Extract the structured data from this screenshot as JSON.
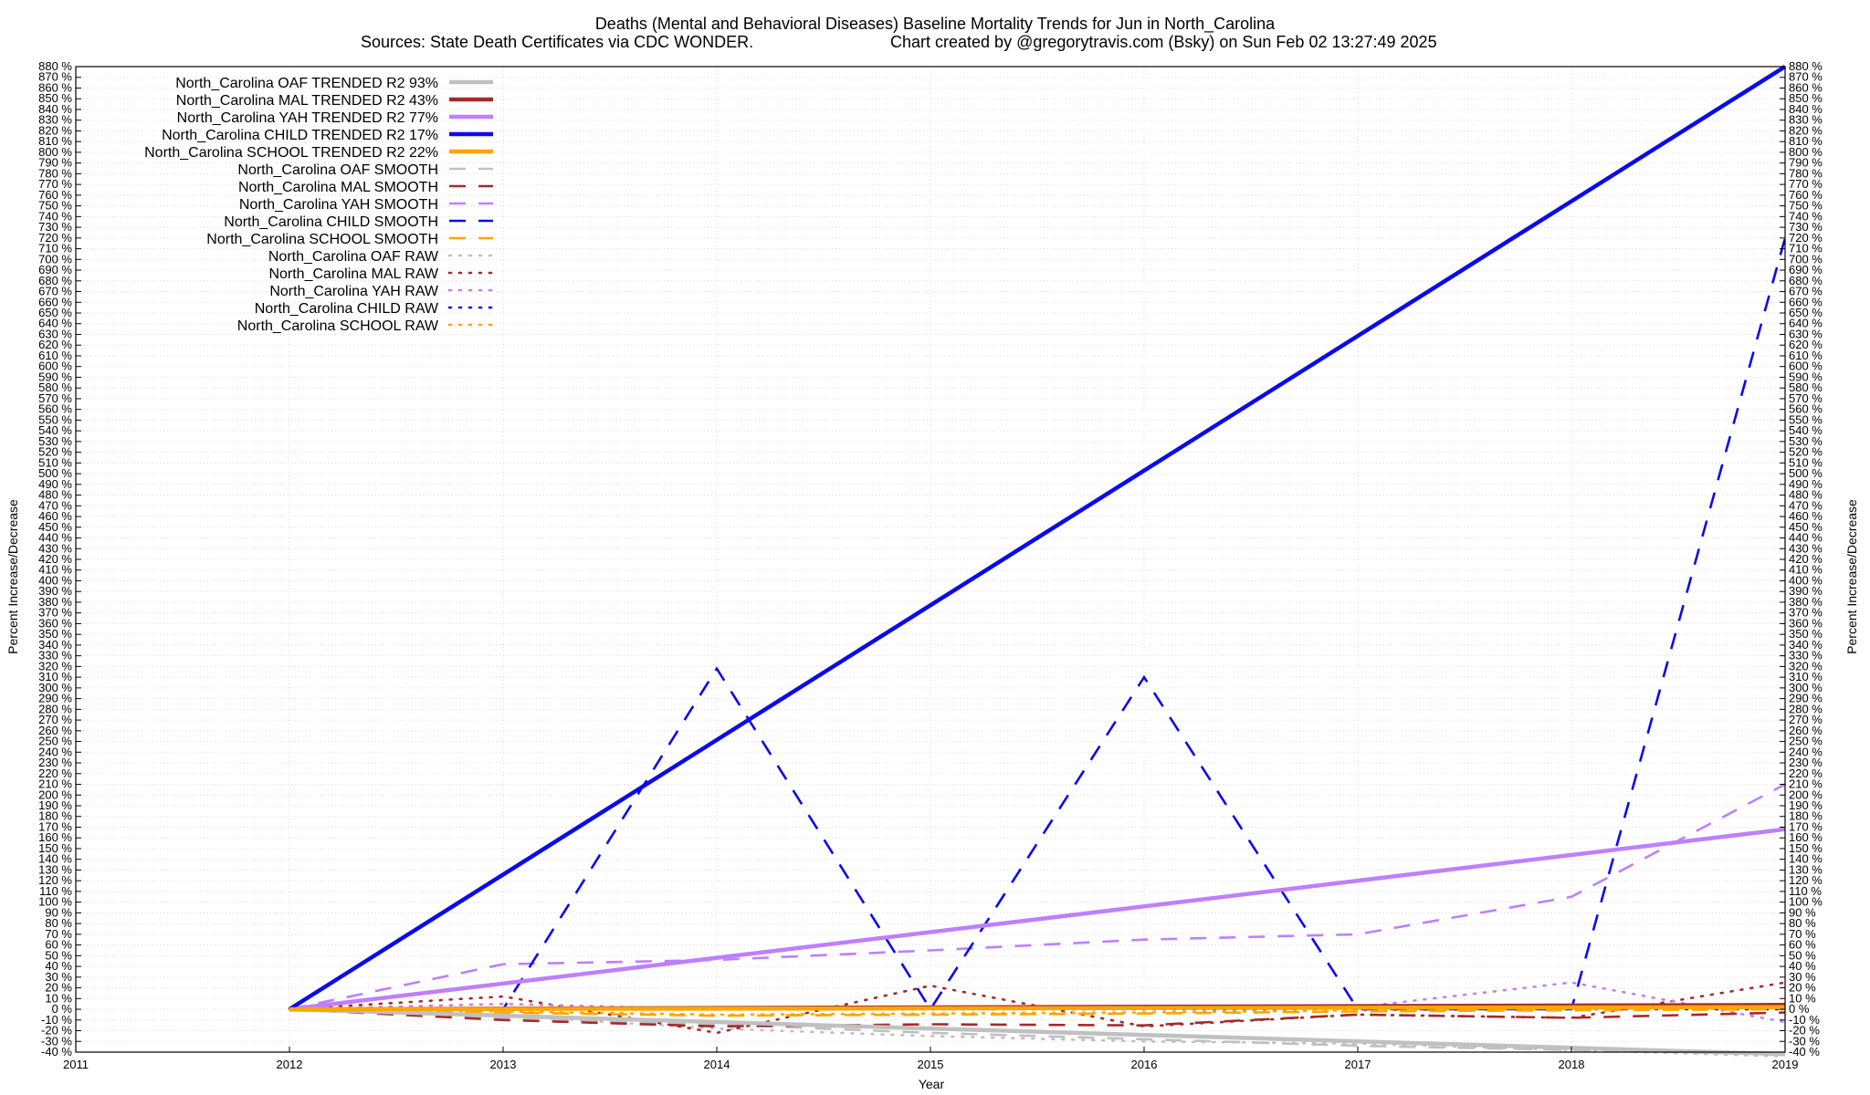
{
  "chart_data": {
    "type": "line",
    "title": "Deaths (Mental and Behavioral Diseases)  Baseline Mortality Trends for Jun in North_Carolina",
    "subtitle_left": "Sources: State Death Certificates via CDC WONDER.",
    "subtitle_right": "Chart created by @gregorytravis.com (Bsky) on Sun Feb 02 13:27:49 2025",
    "xlabel": "Year",
    "ylabel_left": "Percent Increase/Decrease",
    "ylabel_right": "Percent Increase/Decrease",
    "xlim": [
      2011,
      2019
    ],
    "ylim": [
      -40,
      880
    ],
    "x_ticks": [
      "2011",
      "2012",
      "2013",
      "2014",
      "2015",
      "2016",
      "2017",
      "2018",
      "2019"
    ],
    "y_tick_step": 10,
    "y_tick_suffix": " %",
    "grid": true,
    "legend_position": "top-left",
    "series": [
      {
        "name": "North_Carolina OAF TRENDED R2  93%",
        "color": "#c0c0c0",
        "style": "solid",
        "x": [
          2012,
          2019
        ],
        "y": [
          0,
          -42
        ]
      },
      {
        "name": "North_Carolina MAL TRENDED R2  43%",
        "color": "#a52a2a",
        "style": "solid",
        "x": [
          2012,
          2019
        ],
        "y": [
          0,
          4
        ]
      },
      {
        "name": "North_Carolina YAH TRENDED R2  77%",
        "color": "#bf7fff",
        "style": "solid",
        "x": [
          2012,
          2019
        ],
        "y": [
          0,
          168
        ]
      },
      {
        "name": "North_Carolina CHILD TRENDED R2  17%",
        "color": "#0a0aee",
        "style": "solid",
        "x": [
          2012,
          2019
        ],
        "y": [
          0,
          880
        ]
      },
      {
        "name": "North_Carolina SCHOOL TRENDED R2  22%",
        "color": "#ffa500",
        "style": "solid",
        "x": [
          2012,
          2019
        ],
        "y": [
          0,
          2
        ]
      },
      {
        "name": "North_Carolina OAF SMOOTH",
        "color": "#c0c0c0",
        "style": "dash",
        "x": [
          2012,
          2013,
          2014,
          2015,
          2016,
          2017,
          2018,
          2019
        ],
        "y": [
          0,
          -8,
          -14,
          -22,
          -28,
          -34,
          -38,
          -42
        ]
      },
      {
        "name": "North_Carolina MAL SMOOTH",
        "color": "#a52a2a",
        "style": "dash",
        "x": [
          2012,
          2013,
          2014,
          2015,
          2016,
          2017,
          2018,
          2019
        ],
        "y": [
          0,
          -10,
          -16,
          -14,
          -15,
          -5,
          -8,
          -3
        ]
      },
      {
        "name": "North_Carolina YAH SMOOTH",
        "color": "#bf7fff",
        "style": "dash",
        "x": [
          2012,
          2013,
          2014,
          2015,
          2016,
          2017,
          2018,
          2019
        ],
        "y": [
          0,
          42,
          46,
          55,
          65,
          70,
          105,
          210
        ]
      },
      {
        "name": "North_Carolina CHILD SMOOTH",
        "color": "#0a0aee",
        "style": "dash",
        "x": [
          2012,
          2013,
          2014,
          2015,
          2016,
          2017,
          2018,
          2019
        ],
        "y": [
          0,
          0,
          318,
          0,
          310,
          0,
          0,
          720
        ]
      },
      {
        "name": "North_Carolina SCHOOL SMOOTH",
        "color": "#ffa500",
        "style": "dash",
        "x": [
          2012,
          2013,
          2014,
          2015,
          2016,
          2017,
          2018,
          2019
        ],
        "y": [
          0,
          -3,
          -6,
          -5,
          -4,
          -2,
          -1,
          0
        ]
      },
      {
        "name": "North_Carolina OAF RAW",
        "color": "#c0c0c0",
        "style": "dot",
        "x": [
          2012,
          2013,
          2014,
          2015,
          2016,
          2017,
          2018,
          2019
        ],
        "y": [
          0,
          -6,
          -18,
          -25,
          -30,
          -32,
          -38,
          -44
        ]
      },
      {
        "name": "North_Carolina MAL RAW",
        "color": "#a52a2a",
        "style": "dot",
        "x": [
          2012,
          2013,
          2014,
          2015,
          2016,
          2017,
          2018,
          2019
        ],
        "y": [
          0,
          12,
          -22,
          22,
          -16,
          -5,
          -8,
          25
        ]
      },
      {
        "name": "North_Carolina YAH RAW",
        "color": "#bf7fff",
        "style": "dot",
        "x": [
          2012,
          2013,
          2014,
          2015,
          2016,
          2017,
          2018,
          2019
        ],
        "y": [
          0,
          5,
          0,
          0,
          2,
          2,
          25,
          -12
        ]
      },
      {
        "name": "North_Carolina CHILD RAW",
        "color": "#0a0aee",
        "style": "dot",
        "x": [
          2012,
          2013,
          2014,
          2015,
          2016,
          2017,
          2018,
          2019
        ],
        "y": [
          0,
          0,
          0,
          0,
          0,
          0,
          0,
          0
        ]
      },
      {
        "name": "North_Carolina SCHOOL RAW",
        "color": "#ffa500",
        "style": "dot",
        "x": [
          2012,
          2013,
          2014,
          2015,
          2016,
          2017,
          2018,
          2019
        ],
        "y": [
          0,
          -2,
          -5,
          -4,
          -3,
          -1,
          0,
          2
        ]
      }
    ]
  }
}
